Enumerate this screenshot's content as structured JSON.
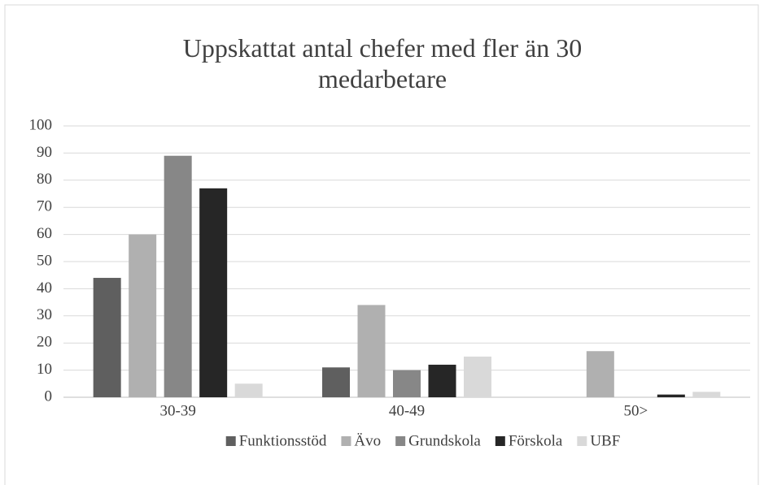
{
  "chart_data": {
    "type": "bar",
    "title": "Uppskattat antal chefer med fler än 30 medarbetare",
    "categories": [
      "30-39",
      "40-49",
      "50>"
    ],
    "series": [
      {
        "name": "Funktionsstöd",
        "color": "#5f5f5f",
        "values": [
          44,
          11,
          0
        ]
      },
      {
        "name": "Ävo",
        "color": "#b0b0b0",
        "values": [
          60,
          34,
          17
        ]
      },
      {
        "name": "Grundskola",
        "color": "#878787",
        "values": [
          89,
          10,
          0
        ]
      },
      {
        "name": "Förskola",
        "color": "#262626",
        "values": [
          77,
          12,
          1
        ]
      },
      {
        "name": "UBF",
        "color": "#d9d9d9",
        "values": [
          5,
          15,
          2
        ]
      }
    ],
    "ylim": [
      0,
      100
    ],
    "yticks": [
      0,
      10,
      20,
      30,
      40,
      50,
      60,
      70,
      80,
      90,
      100
    ],
    "grid": true,
    "legend": "bottom"
  }
}
